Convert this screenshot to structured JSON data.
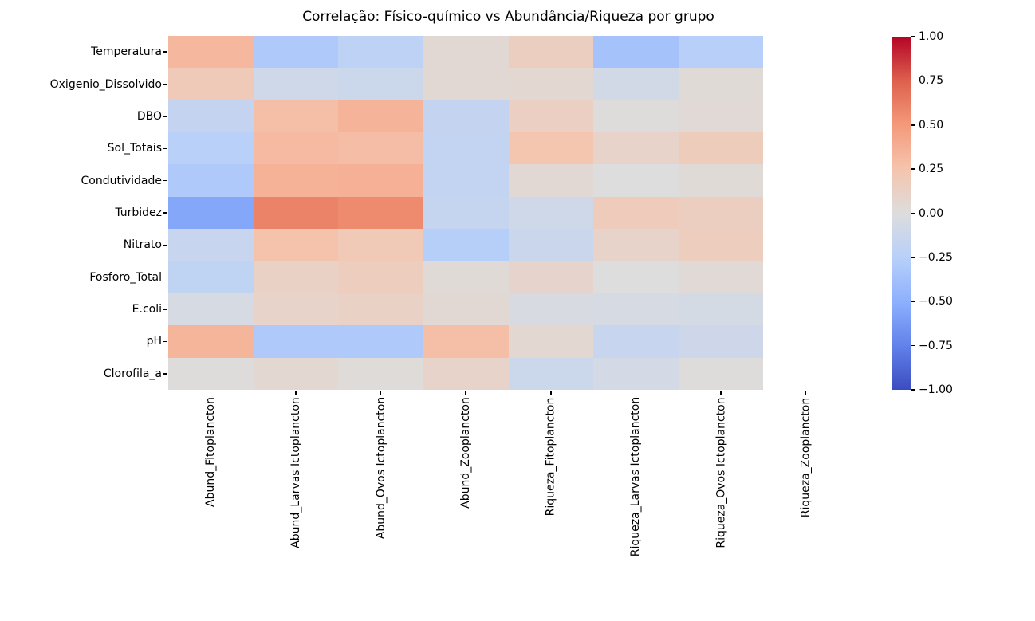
{
  "chart_data": {
    "type": "heatmap",
    "title": "Correlação: Físico-químico vs Abundância/Riqueza por grupo",
    "rows": [
      "Temperatura",
      "Oxigenio_Dissolvido",
      "DBO",
      "Sol_Totais",
      "Condutividade",
      "Turbidez",
      "Nitrato",
      "Fosforo_Total",
      "E.coli",
      "pH",
      "Clorofila_a"
    ],
    "columns": [
      "Abund_Fitoplancton",
      "Abund_Larvas Ictoplancton",
      "Abund_Ovos Ictoplancton",
      "Abund_Zooplancton",
      "Riqueza_Fitoplancton",
      "Riqueza_Larvas Ictoplancton",
      "Riqueza_Ovos Ictoplancton",
      "Riqueza_Zooplancton"
    ],
    "matrix": [
      [
        0.32,
        -0.3,
        -0.21,
        0.05,
        0.15,
        -0.36,
        -0.25,
        null
      ],
      [
        0.19,
        -0.1,
        -0.12,
        0.05,
        0.06,
        -0.08,
        0.03,
        null
      ],
      [
        -0.17,
        0.28,
        0.35,
        -0.17,
        0.14,
        0.01,
        0.04,
        null
      ],
      [
        -0.24,
        0.31,
        0.29,
        -0.18,
        0.24,
        0.1,
        0.17,
        null
      ],
      [
        -0.3,
        0.36,
        0.37,
        -0.18,
        0.05,
        0.0,
        0.03,
        null
      ],
      [
        -0.55,
        0.6,
        0.57,
        -0.16,
        -0.1,
        0.18,
        0.15,
        null
      ],
      [
        -0.15,
        0.26,
        0.2,
        -0.26,
        -0.13,
        0.1,
        0.16,
        null
      ],
      [
        -0.2,
        0.12,
        0.16,
        0.03,
        0.09,
        0.0,
        0.04,
        null
      ],
      [
        -0.05,
        0.1,
        0.12,
        0.05,
        -0.04,
        -0.05,
        -0.06,
        null
      ],
      [
        0.34,
        -0.3,
        -0.3,
        0.28,
        0.06,
        -0.15,
        -0.11,
        null
      ],
      [
        0.01,
        0.06,
        0.02,
        0.1,
        -0.12,
        -0.07,
        0.01,
        null
      ]
    ],
    "vmin": -1.0,
    "vmax": 1.0,
    "grid": false,
    "legend_position": "colorbar-right",
    "colorbar_ticks": [
      1.0,
      0.75,
      0.5,
      0.25,
      0.0,
      -0.25,
      -0.5,
      -0.75,
      -1.0
    ],
    "colormap": "coolwarm",
    "colormap_anchors": [
      {
        "v": -1.0,
        "hex": "#3b4cc0"
      },
      {
        "v": -0.75,
        "hex": "#6282ea"
      },
      {
        "v": -0.5,
        "hex": "#8db0fe"
      },
      {
        "v": -0.25,
        "hex": "#b8d0f9"
      },
      {
        "v": 0.0,
        "hex": "#dddddd"
      },
      {
        "v": 0.25,
        "hex": "#f5c4ad"
      },
      {
        "v": 0.5,
        "hex": "#f49a7b"
      },
      {
        "v": 0.75,
        "hex": "#de604d"
      },
      {
        "v": 1.0,
        "hex": "#b40426"
      }
    ],
    "nan_color": "#ffffff",
    "background_color": "#ffffff",
    "text_color": "#000000"
  }
}
